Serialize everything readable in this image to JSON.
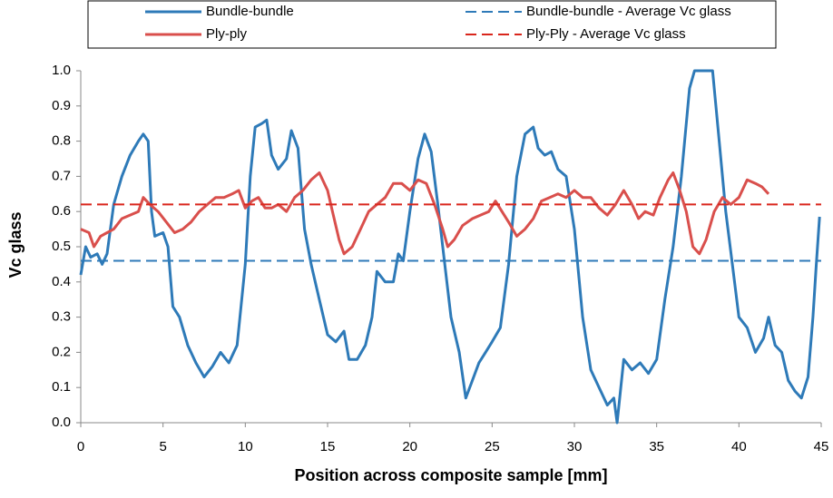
{
  "chart_data": {
    "type": "line",
    "xlabel": "Position across composite sample [mm]",
    "ylabel": "Vc glass",
    "xlim": [
      0,
      45
    ],
    "xticks": [
      0,
      5,
      10,
      15,
      20,
      25,
      30,
      35,
      40,
      45
    ],
    "ylim": [
      0,
      1
    ],
    "yticks": [
      {
        "value": 0,
        "label": "0.0"
      },
      0.1,
      0.2,
      0.3,
      0.4,
      0.5,
      0.6,
      0.7,
      0.8,
      0.9,
      {
        "value": 1,
        "label": "1.0"
      }
    ],
    "legend": "top",
    "series": [
      {
        "name": "Bundle-bundle",
        "color": "#2e7ab8",
        "dash": false,
        "x": [
          0,
          0.3,
          0.6,
          1.0,
          1.3,
          1.6,
          2.0,
          2.5,
          3.0,
          3.5,
          3.8,
          4.1,
          4.3,
          4.5,
          5.0,
          5.3,
          5.6,
          6.0,
          6.5,
          7.0,
          7.5,
          8.0,
          8.5,
          9.0,
          9.5,
          10.0,
          10.3,
          10.6,
          11.0,
          11.3,
          11.6,
          12.0,
          12.5,
          12.8,
          13.2,
          13.6,
          14.0,
          14.5,
          15.0,
          15.5,
          16.0,
          16.3,
          16.8,
          17.3,
          17.7,
          18.0,
          18.5,
          19.0,
          19.3,
          19.6,
          20.0,
          20.5,
          20.9,
          21.3,
          21.7,
          22.0,
          22.5,
          23.0,
          23.4,
          23.8,
          24.2,
          24.6,
          25.0,
          25.5,
          26.0,
          26.5,
          27.0,
          27.5,
          27.8,
          28.2,
          28.6,
          29.0,
          29.5,
          30.0,
          30.5,
          31.0,
          31.5,
          32.0,
          32.4,
          32.6,
          33.0,
          33.5,
          34.0,
          34.5,
          35.0,
          35.5,
          36.0,
          36.5,
          37.0,
          37.3,
          38.0,
          38.4,
          38.8,
          39.2,
          39.6,
          40.0,
          40.5,
          41.0,
          41.5,
          41.8,
          42.2,
          42.6,
          43.0,
          43.4,
          43.8,
          44.2,
          44.5,
          44.7,
          44.9
        ],
        "values": [
          0.42,
          0.5,
          0.47,
          0.48,
          0.45,
          0.48,
          0.62,
          0.7,
          0.76,
          0.8,
          0.82,
          0.8,
          0.6,
          0.53,
          0.54,
          0.5,
          0.33,
          0.3,
          0.22,
          0.17,
          0.13,
          0.16,
          0.2,
          0.17,
          0.22,
          0.45,
          0.7,
          0.84,
          0.85,
          0.86,
          0.76,
          0.72,
          0.75,
          0.83,
          0.78,
          0.55,
          0.45,
          0.35,
          0.25,
          0.23,
          0.26,
          0.18,
          0.18,
          0.22,
          0.3,
          0.43,
          0.4,
          0.4,
          0.48,
          0.46,
          0.6,
          0.75,
          0.82,
          0.77,
          0.62,
          0.5,
          0.3,
          0.2,
          0.07,
          0.12,
          0.17,
          0.2,
          0.23,
          0.27,
          0.45,
          0.7,
          0.82,
          0.84,
          0.78,
          0.76,
          0.77,
          0.72,
          0.7,
          0.55,
          0.3,
          0.15,
          0.1,
          0.05,
          0.07,
          0.0,
          0.18,
          0.15,
          0.17,
          0.14,
          0.18,
          0.35,
          0.5,
          0.7,
          0.95,
          1.0,
          1.0,
          1.0,
          0.8,
          0.6,
          0.45,
          0.3,
          0.27,
          0.2,
          0.24,
          0.3,
          0.22,
          0.2,
          0.12,
          0.09,
          0.07,
          0.13,
          0.3,
          0.45,
          0.585
        ]
      },
      {
        "name": "Ply-ply",
        "color": "#d94f4c",
        "dash": false,
        "x": [
          0,
          0.5,
          0.8,
          1.2,
          1.6,
          2.0,
          2.5,
          3.0,
          3.5,
          3.8,
          4.2,
          4.7,
          5.2,
          5.7,
          6.2,
          6.7,
          7.2,
          7.7,
          8.2,
          8.7,
          9.2,
          9.6,
          10.0,
          10.4,
          10.8,
          11.2,
          11.6,
          12.0,
          12.5,
          13.0,
          13.5,
          14.0,
          14.5,
          15.0,
          15.3,
          15.7,
          16.0,
          16.5,
          17.0,
          17.5,
          18.0,
          18.5,
          19.0,
          19.5,
          20.0,
          20.5,
          21.0,
          21.5,
          22.0,
          22.3,
          22.7,
          23.2,
          23.8,
          24.3,
          24.8,
          25.2,
          25.6,
          26.0,
          26.5,
          27.0,
          27.5,
          28.0,
          28.5,
          29.0,
          29.5,
          30.0,
          30.5,
          31.0,
          31.5,
          32.0,
          32.5,
          33.0,
          33.5,
          33.9,
          34.3,
          34.8,
          35.2,
          35.7,
          36.0,
          36.4,
          36.8,
          37.2,
          37.6,
          38.0,
          38.5,
          39.0,
          39.5,
          40.0,
          40.5,
          41.0,
          41.4,
          41.8
        ],
        "values": [
          0.55,
          0.54,
          0.5,
          0.53,
          0.54,
          0.55,
          0.58,
          0.59,
          0.6,
          0.64,
          0.62,
          0.6,
          0.57,
          0.54,
          0.55,
          0.57,
          0.6,
          0.62,
          0.64,
          0.64,
          0.65,
          0.66,
          0.61,
          0.63,
          0.64,
          0.61,
          0.61,
          0.62,
          0.6,
          0.64,
          0.66,
          0.69,
          0.71,
          0.66,
          0.6,
          0.52,
          0.48,
          0.5,
          0.55,
          0.6,
          0.62,
          0.64,
          0.68,
          0.68,
          0.66,
          0.69,
          0.68,
          0.62,
          0.55,
          0.5,
          0.52,
          0.56,
          0.58,
          0.59,
          0.6,
          0.63,
          0.6,
          0.57,
          0.53,
          0.55,
          0.58,
          0.63,
          0.64,
          0.65,
          0.64,
          0.66,
          0.64,
          0.64,
          0.61,
          0.59,
          0.62,
          0.66,
          0.62,
          0.58,
          0.6,
          0.59,
          0.64,
          0.69,
          0.71,
          0.66,
          0.6,
          0.5,
          0.48,
          0.52,
          0.6,
          0.64,
          0.62,
          0.64,
          0.69,
          0.68,
          0.67,
          0.65
        ]
      },
      {
        "name": "Bundle-bundle - Average Vc glass",
        "color": "#2e7ab8",
        "dash": true,
        "x": [
          0,
          45
        ],
        "values": [
          0.46,
          0.46
        ]
      },
      {
        "name": "Ply-Ply - Average Vc glass",
        "color": "#d9261c",
        "dash": true,
        "x": [
          0,
          45
        ],
        "values": [
          0.62,
          0.62
        ]
      }
    ]
  }
}
